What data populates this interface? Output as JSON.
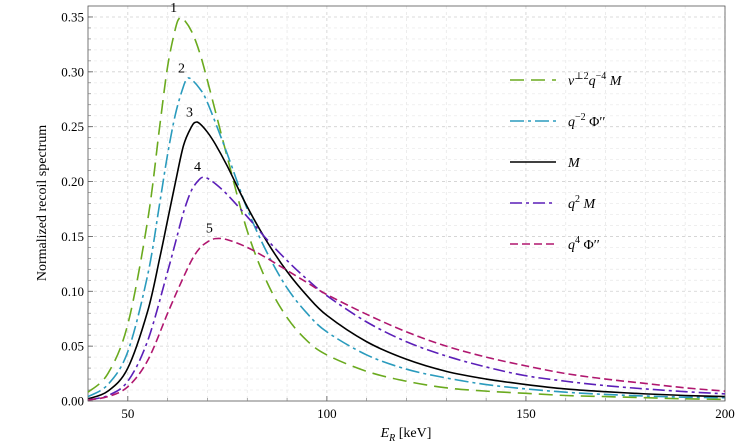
{
  "chart_data": {
    "type": "line",
    "xlabel": "E_R [keV]",
    "xlabel_main": "E",
    "xlabel_sub": "R",
    "xlabel_unit": " [keV]",
    "ylabel": "Normalized  recoil spectrum",
    "xlim": [
      40,
      200
    ],
    "ylim": [
      0,
      0.36
    ],
    "xticks": [
      50,
      100,
      150,
      200
    ],
    "yticks": [
      0.0,
      0.05,
      0.1,
      0.15,
      0.2,
      0.25,
      0.3,
      0.35
    ],
    "xtick_labels": [
      "50",
      "100",
      "150",
      "200"
    ],
    "ytick_labels": [
      "0.00",
      "0.05",
      "0.10",
      "0.15",
      "0.20",
      "0.25",
      "0.30",
      "0.35"
    ],
    "grid": true,
    "legend_position": "right",
    "series": [
      {
        "label_number": "1",
        "legend": "v⊥2 q−4 M",
        "color": "#6aaa1e",
        "dash": "14,7",
        "x": [
          40,
          45,
          50,
          55,
          58,
          60,
          62,
          63,
          64,
          66,
          68,
          70,
          75,
          80,
          85,
          90,
          95,
          100,
          110,
          120,
          130,
          140,
          150,
          160,
          170,
          180,
          190,
          200
        ],
        "y": [
          0.008,
          0.025,
          0.07,
          0.165,
          0.25,
          0.305,
          0.34,
          0.349,
          0.348,
          0.337,
          0.318,
          0.292,
          0.222,
          0.155,
          0.108,
          0.076,
          0.055,
          0.042,
          0.027,
          0.018,
          0.012,
          0.009,
          0.007,
          0.005,
          0.004,
          0.003,
          0.002,
          0.0015
        ]
      },
      {
        "label_number": "2",
        "legend": "q−2 Φ′′",
        "color": "#2a9bbd",
        "dash": "14,4,3,4",
        "x": [
          40,
          45,
          50,
          55,
          58,
          60,
          62,
          64,
          65,
          66,
          68,
          70,
          75,
          80,
          85,
          90,
          95,
          100,
          110,
          120,
          130,
          140,
          150,
          160,
          170,
          180,
          190,
          200
        ],
        "y": [
          0.004,
          0.015,
          0.045,
          0.115,
          0.18,
          0.225,
          0.262,
          0.287,
          0.294,
          0.293,
          0.285,
          0.272,
          0.225,
          0.175,
          0.135,
          0.103,
          0.08,
          0.063,
          0.042,
          0.029,
          0.021,
          0.015,
          0.011,
          0.008,
          0.006,
          0.0045,
          0.0035,
          0.003
        ]
      },
      {
        "label_number": "3",
        "legend": "M",
        "color": "#000000",
        "dash": "",
        "x": [
          40,
          45,
          50,
          55,
          58,
          60,
          62,
          64,
          66,
          67,
          68,
          70,
          72,
          75,
          80,
          85,
          90,
          95,
          100,
          110,
          120,
          130,
          140,
          150,
          160,
          170,
          180,
          190,
          200
        ],
        "y": [
          0.002,
          0.009,
          0.03,
          0.082,
          0.13,
          0.165,
          0.2,
          0.233,
          0.25,
          0.254,
          0.253,
          0.245,
          0.234,
          0.214,
          0.177,
          0.145,
          0.118,
          0.096,
          0.078,
          0.054,
          0.038,
          0.027,
          0.02,
          0.015,
          0.011,
          0.0085,
          0.0065,
          0.005,
          0.004
        ]
      },
      {
        "label_number": "4",
        "legend": "q2 M",
        "color": "#5b1fb8",
        "dash": "12,4,3,4",
        "x": [
          40,
          45,
          50,
          55,
          60,
          62,
          64,
          66,
          68,
          69,
          70,
          72,
          75,
          80,
          85,
          90,
          95,
          100,
          110,
          120,
          130,
          140,
          150,
          160,
          170,
          180,
          190,
          200
        ],
        "y": [
          0.001,
          0.005,
          0.018,
          0.055,
          0.118,
          0.145,
          0.172,
          0.192,
          0.202,
          0.204,
          0.203,
          0.198,
          0.188,
          0.168,
          0.147,
          0.128,
          0.111,
          0.096,
          0.072,
          0.054,
          0.041,
          0.031,
          0.023,
          0.018,
          0.014,
          0.011,
          0.0085,
          0.0065
        ]
      },
      {
        "label_number": "5",
        "legend": "q4 Φ′′",
        "color": "#b0176f",
        "dash": "8,4",
        "x": [
          40,
          45,
          50,
          55,
          60,
          63,
          66,
          68,
          70,
          72,
          75,
          80,
          85,
          90,
          95,
          100,
          110,
          120,
          130,
          140,
          150,
          160,
          170,
          180,
          190,
          200
        ],
        "y": [
          0.001,
          0.004,
          0.013,
          0.037,
          0.08,
          0.105,
          0.128,
          0.139,
          0.145,
          0.148,
          0.147,
          0.14,
          0.13,
          0.119,
          0.108,
          0.097,
          0.079,
          0.063,
          0.05,
          0.04,
          0.032,
          0.025,
          0.02,
          0.016,
          0.012,
          0.009
        ]
      }
    ],
    "legend_entries": [
      {
        "main": "",
        "parts": [
          {
            "t": "v",
            "i": true
          },
          {
            "t": "⊥2",
            "sup": true
          },
          {
            "t": "q",
            "i": true
          },
          {
            "t": "−4",
            "sup": true
          },
          {
            "t": " M",
            "i": true
          }
        ]
      },
      {
        "main": "",
        "parts": [
          {
            "t": "q",
            "i": true
          },
          {
            "t": "−2",
            "sup": true
          },
          {
            "t": " Φ′′",
            "i": false
          }
        ]
      },
      {
        "main": "",
        "parts": [
          {
            "t": "M",
            "i": true
          }
        ]
      },
      {
        "main": "",
        "parts": [
          {
            "t": "q",
            "i": true
          },
          {
            "t": "2",
            "sup": true
          },
          {
            "t": " M",
            "i": true
          }
        ]
      },
      {
        "main": "",
        "parts": [
          {
            "t": "q",
            "i": true
          },
          {
            "t": "4",
            "sup": true
          },
          {
            "t": " Φ′′",
            "i": false
          }
        ]
      }
    ]
  }
}
